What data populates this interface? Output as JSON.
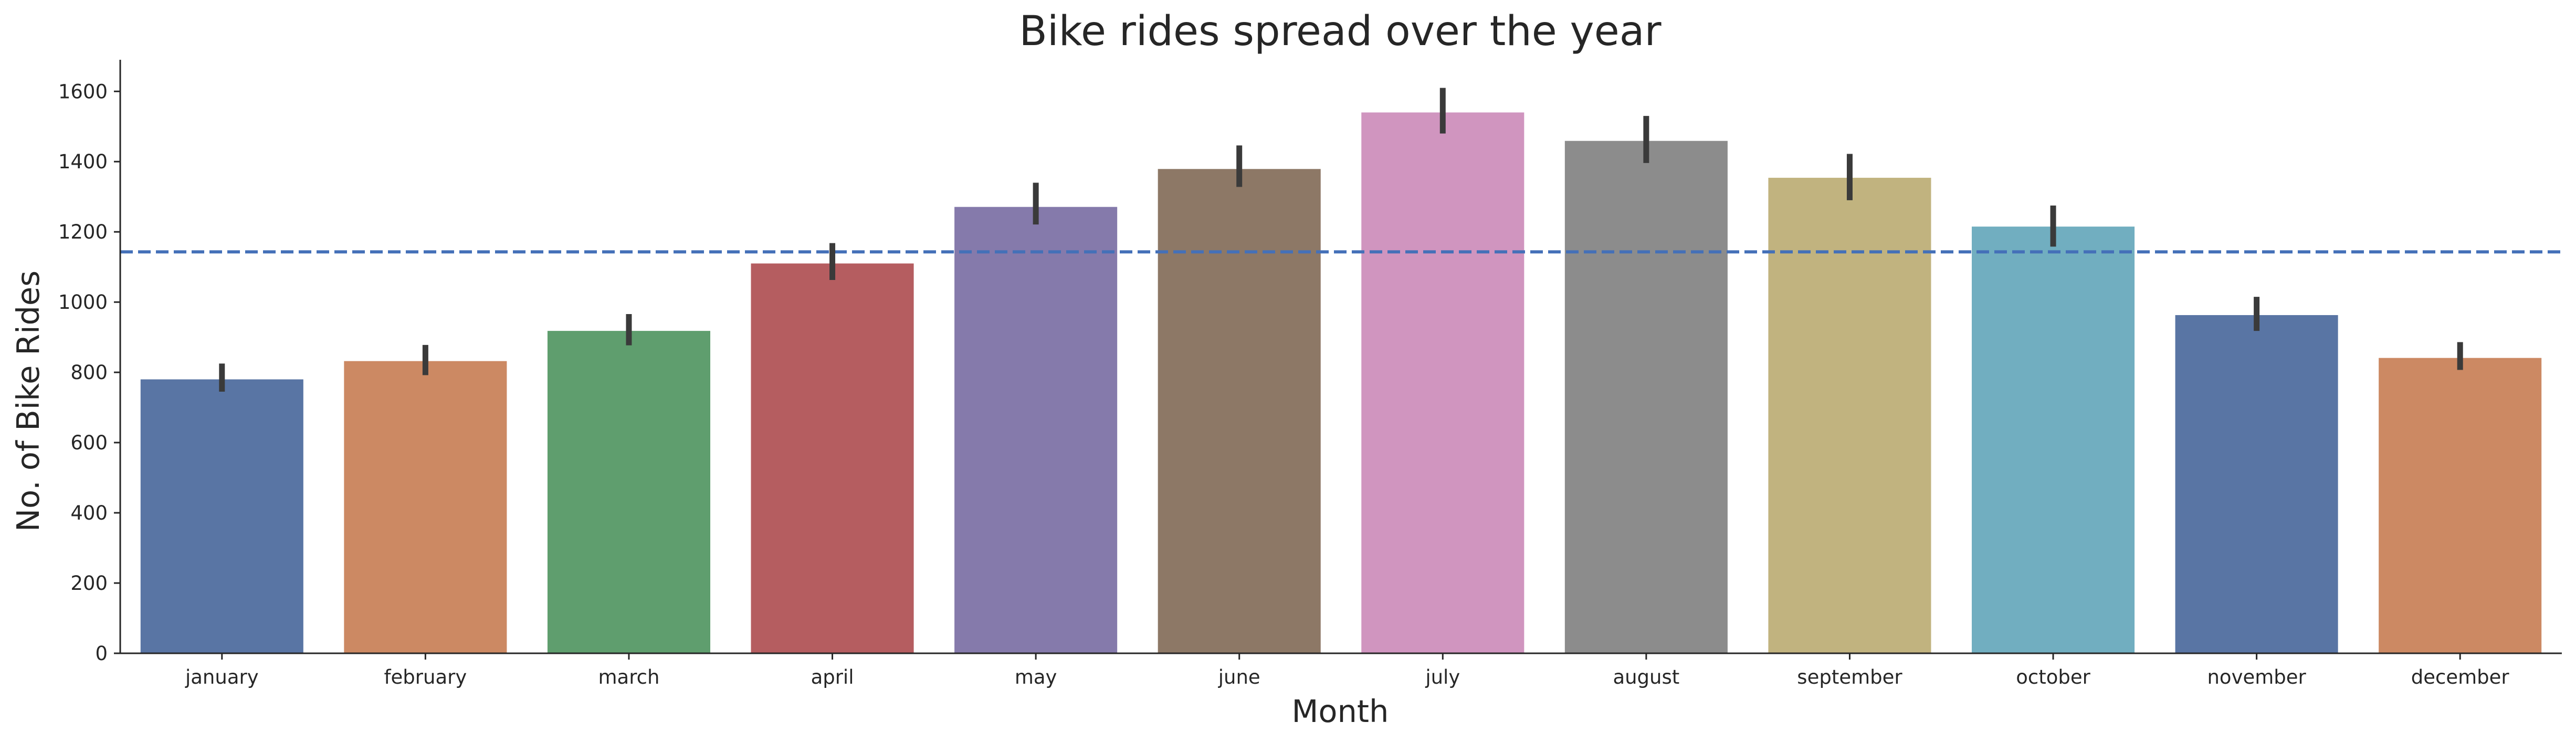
{
  "chart_data": {
    "type": "bar",
    "title": "Bike rides spread over the year",
    "xlabel": "Month",
    "ylabel": "No. of Bike Rides",
    "categories": [
      "january",
      "february",
      "march",
      "april",
      "may",
      "june",
      "july",
      "august",
      "september",
      "october",
      "november",
      "december"
    ],
    "values": [
      780,
      832,
      918,
      1110,
      1271,
      1379,
      1540,
      1459,
      1354,
      1215,
      963,
      841
    ],
    "error_low": [
      745,
      792,
      877,
      1063,
      1221,
      1328,
      1480,
      1396,
      1290,
      1158,
      918,
      807
    ],
    "error_high": [
      825,
      878,
      966,
      1168,
      1340,
      1446,
      1610,
      1530,
      1422,
      1275,
      1015,
      886
    ],
    "reference_line": 1143,
    "ylim": [
      0,
      1690
    ],
    "yticks": [
      0,
      200,
      400,
      600,
      800,
      1000,
      1200,
      1400,
      1600
    ],
    "grid": false,
    "colors": [
      "#5975a4",
      "#cc8963",
      "#5f9e6e",
      "#b55d60",
      "#857aab",
      "#8d7866",
      "#d095bf",
      "#8c8c8c",
      "#c1b37f",
      "#71aec0",
      "#5975a4",
      "#cc8963"
    ],
    "error_color": "#3a3a3a",
    "reference_line_color": "#4470b8",
    "axis_color": "#262626"
  }
}
